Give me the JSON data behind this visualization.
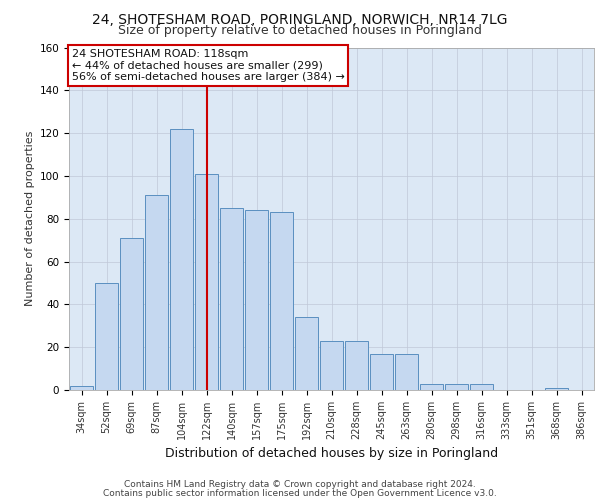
{
  "title_line1": "24, SHOTESHAM ROAD, PORINGLAND, NORWICH, NR14 7LG",
  "title_line2": "Size of property relative to detached houses in Poringland",
  "xlabel": "Distribution of detached houses by size in Poringland",
  "ylabel": "Number of detached properties",
  "categories": [
    "34sqm",
    "52sqm",
    "69sqm",
    "87sqm",
    "104sqm",
    "122sqm",
    "140sqm",
    "157sqm",
    "175sqm",
    "192sqm",
    "210sqm",
    "228sqm",
    "245sqm",
    "263sqm",
    "280sqm",
    "298sqm",
    "316sqm",
    "333sqm",
    "351sqm",
    "368sqm",
    "386sqm"
  ],
  "bar_heights": [
    2,
    50,
    71,
    91,
    122,
    101,
    85,
    84,
    83,
    34,
    23,
    23,
    17,
    17,
    3,
    3,
    3,
    0,
    0,
    1,
    0
  ],
  "bar_color": "#c5d8f0",
  "bar_edge_color": "#5a8fc0",
  "red_line_x": 5.0,
  "annotation_text": "24 SHOTESHAM ROAD: 118sqm\n← 44% of detached houses are smaller (299)\n56% of semi-detached houses are larger (384) →",
  "annotation_box_color": "#ffffff",
  "annotation_box_edge": "#cc0000",
  "ylim": [
    0,
    160
  ],
  "yticks": [
    0,
    20,
    40,
    60,
    80,
    100,
    120,
    140,
    160
  ],
  "grid_color": "#c0c8d8",
  "background_color": "#dce8f5",
  "footer_line1": "Contains HM Land Registry data © Crown copyright and database right 2024.",
  "footer_line2": "Contains public sector information licensed under the Open Government Licence v3.0.",
  "title_fontsize": 10,
  "subtitle_fontsize": 9,
  "ylabel_fontsize": 8,
  "xlabel_fontsize": 9,
  "tick_fontsize": 7,
  "footer_fontsize": 6.5,
  "annotation_fontsize": 8
}
